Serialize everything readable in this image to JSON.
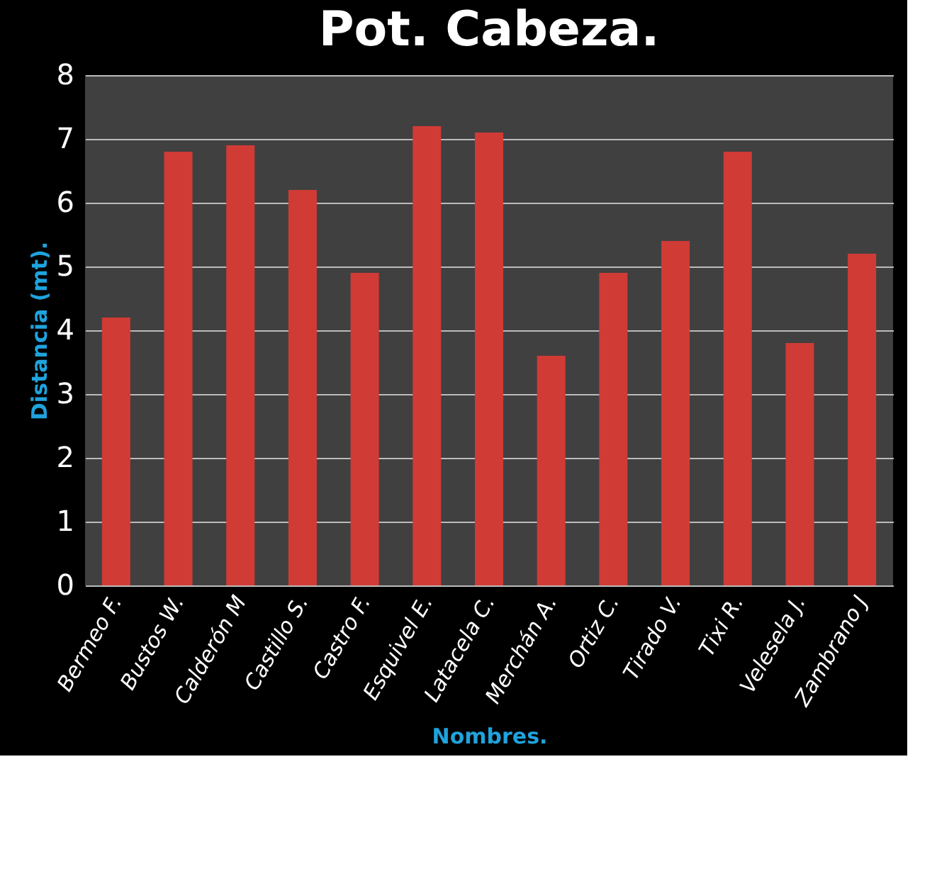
{
  "chart_data": {
    "type": "bar",
    "title": "Pot. Cabeza.",
    "xlabel": "Nombres.",
    "ylabel": "Distancia (mt).",
    "categories": [
      "Bermeo F.",
      "Bustos  W.",
      "Calderón M",
      "Castillo S.",
      "Castro F.",
      "Esquivel  E.",
      "Latacela C.",
      "Merchán A.",
      "Ortiz C.",
      "Tirado V.",
      "Tixi  R.",
      "Velesela  J.",
      "Zambrano J"
    ],
    "values": [
      4.2,
      6.8,
      6.9,
      6.2,
      4.9,
      7.2,
      7.1,
      3.6,
      4.9,
      5.4,
      6.8,
      3.8,
      5.2
    ],
    "color": "#d13b35",
    "ylim": [
      0,
      8
    ],
    "yticks": [
      0,
      1,
      2,
      3,
      4,
      5,
      6,
      7,
      8
    ],
    "grid": "y"
  }
}
